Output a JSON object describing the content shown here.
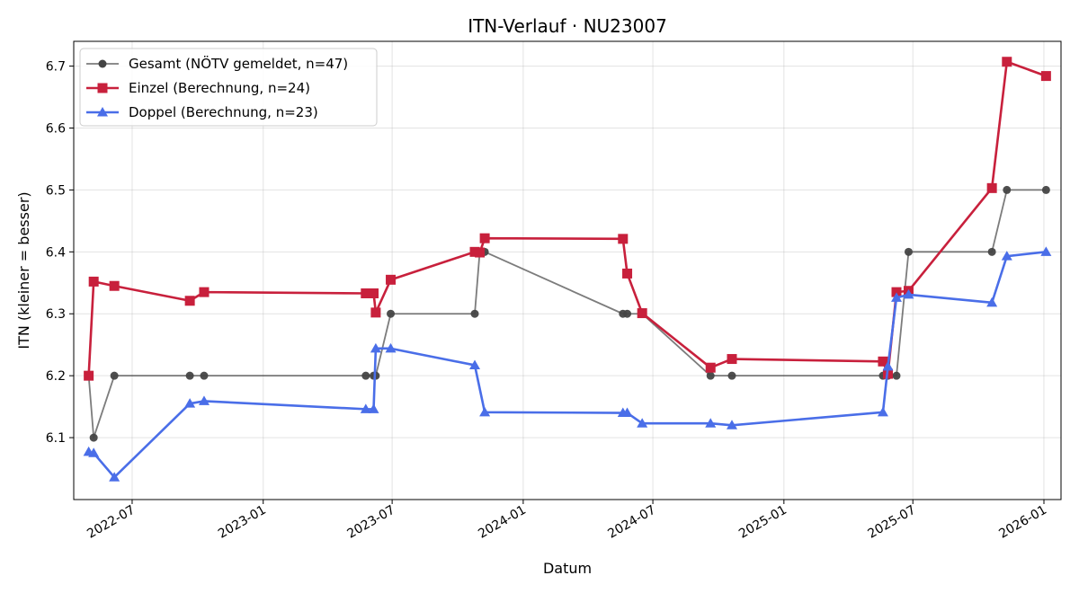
{
  "chart_data": {
    "type": "line",
    "title": "ITN-Verlauf · NU23007",
    "xlabel": "Datum",
    "ylabel": "ITN  (kleiner = besser)",
    "x_axis_type": "date",
    "xlim": [
      "2022-04-10",
      "2026-01-25"
    ],
    "ylim": [
      6.0,
      6.74
    ],
    "x_ticks": [
      "2022-07",
      "2023-01",
      "2023-07",
      "2024-01",
      "2024-07",
      "2025-01",
      "2025-07",
      "2026-01"
    ],
    "x_tick_dates": [
      "2022-07-01",
      "2023-01-01",
      "2023-07-01",
      "2024-01-01",
      "2024-07-01",
      "2025-01-01",
      "2025-07-01",
      "2026-01-01"
    ],
    "y_ticks": [
      6.1,
      6.2,
      6.3,
      6.4,
      6.5,
      6.6,
      6.7
    ],
    "grid": true,
    "legend_position": "top-left",
    "series": [
      {
        "name": "Gesamt (NÖTV gemeldet, n=47)",
        "color": "#444444",
        "marker": "circle",
        "points": [
          [
            "2022-05-01",
            6.2
          ],
          [
            "2022-05-08",
            6.1
          ],
          [
            "2022-06-06",
            6.2
          ],
          [
            "2022-09-20",
            6.2
          ],
          [
            "2022-10-10",
            6.2
          ],
          [
            "2023-05-25",
            6.2
          ],
          [
            "2023-06-05",
            6.2
          ],
          [
            "2023-06-08",
            6.2
          ],
          [
            "2023-06-29",
            6.3
          ],
          [
            "2023-10-25",
            6.3
          ],
          [
            "2023-11-01",
            6.4
          ],
          [
            "2023-11-08",
            6.4
          ],
          [
            "2024-05-20",
            6.3
          ],
          [
            "2024-05-26",
            6.3
          ],
          [
            "2024-06-16",
            6.3
          ],
          [
            "2024-09-20",
            6.2
          ],
          [
            "2024-10-20",
            6.2
          ],
          [
            "2025-05-20",
            6.2
          ],
          [
            "2025-05-27",
            6.2
          ],
          [
            "2025-06-08",
            6.2
          ],
          [
            "2025-06-25",
            6.4
          ],
          [
            "2025-10-20",
            6.4
          ],
          [
            "2025-11-10",
            6.5
          ],
          [
            "2026-01-04",
            6.5
          ]
        ]
      },
      {
        "name": "Einzel (Berechnung, n=24)",
        "color": "#c8203c",
        "marker": "square",
        "points": [
          [
            "2022-05-01",
            6.2
          ],
          [
            "2022-05-08",
            6.352
          ],
          [
            "2022-06-06",
            6.345
          ],
          [
            "2022-09-20",
            6.321
          ],
          [
            "2022-10-10",
            6.335
          ],
          [
            "2023-05-25",
            6.333
          ],
          [
            "2023-06-05",
            6.333
          ],
          [
            "2023-06-08",
            6.302
          ],
          [
            "2023-06-29",
            6.355
          ],
          [
            "2023-10-25",
            6.4
          ],
          [
            "2023-11-01",
            6.399
          ],
          [
            "2023-11-08",
            6.422
          ],
          [
            "2024-05-20",
            6.421
          ],
          [
            "2024-05-26",
            6.365
          ],
          [
            "2024-06-16",
            6.301
          ],
          [
            "2024-09-20",
            6.213
          ],
          [
            "2024-10-20",
            6.227
          ],
          [
            "2025-05-20",
            6.223
          ],
          [
            "2025-05-27",
            6.203
          ],
          [
            "2025-06-08",
            6.335
          ],
          [
            "2025-06-25",
            6.337
          ],
          [
            "2025-10-20",
            6.503
          ],
          [
            "2025-11-10",
            6.707
          ],
          [
            "2026-01-04",
            6.684
          ]
        ]
      },
      {
        "name": "Doppel (Berechnung, n=23)",
        "color": "#4a6ee8",
        "marker": "triangle",
        "points": [
          [
            "2022-05-01",
            6.077
          ],
          [
            "2022-05-08",
            6.075
          ],
          [
            "2022-06-06",
            6.036
          ],
          [
            "2022-09-20",
            6.155
          ],
          [
            "2022-10-10",
            6.159
          ],
          [
            "2023-05-25",
            6.146
          ],
          [
            "2023-06-05",
            6.146
          ],
          [
            "2023-06-08",
            6.244
          ],
          [
            "2023-06-29",
            6.244
          ],
          [
            "2023-10-25",
            6.217
          ],
          [
            "2023-11-08",
            6.141
          ],
          [
            "2024-05-20",
            6.14
          ],
          [
            "2024-05-26",
            6.14
          ],
          [
            "2024-06-16",
            6.123
          ],
          [
            "2024-09-20",
            6.123
          ],
          [
            "2024-10-20",
            6.12
          ],
          [
            "2025-05-20",
            6.141
          ],
          [
            "2025-05-27",
            6.215
          ],
          [
            "2025-06-08",
            6.326
          ],
          [
            "2025-06-25",
            6.331
          ],
          [
            "2025-10-20",
            6.318
          ],
          [
            "2025-11-10",
            6.393
          ],
          [
            "2026-01-04",
            6.4
          ]
        ]
      }
    ]
  }
}
